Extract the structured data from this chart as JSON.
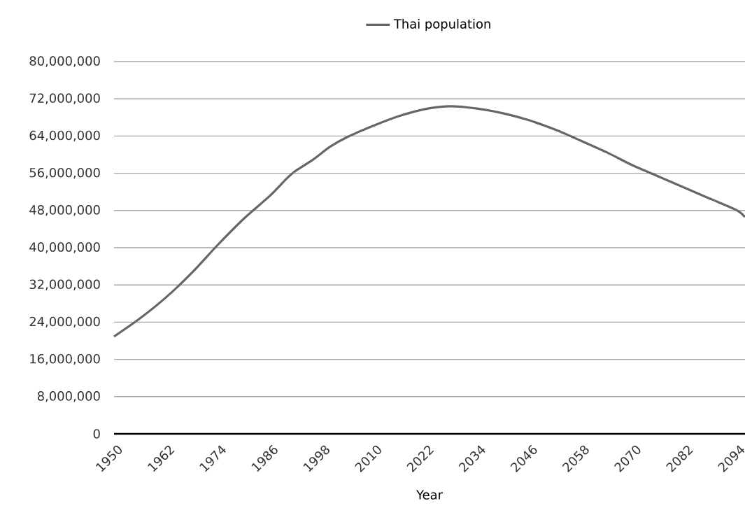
{
  "chart_data": {
    "type": "line",
    "xlabel": "Year",
    "x": [
      1950,
      1956,
      1962,
      1968,
      1974,
      1980,
      1986,
      1990,
      1992,
      1996,
      2000,
      2004,
      2010,
      2016,
      2022,
      2028,
      2034,
      2040,
      2046,
      2052,
      2058,
      2064,
      2070,
      2076,
      2082,
      2088,
      2094,
      2096
    ],
    "series": [
      {
        "name": "Thai population",
        "color": "#666666",
        "values": [
          20900000,
          24800000,
          29300000,
          34600000,
          40600000,
          46200000,
          51100000,
          54900000,
          56500000,
          58900000,
          61700000,
          63800000,
          66200000,
          68300000,
          69800000,
          70400000,
          69900000,
          68900000,
          67400000,
          65400000,
          63000000,
          60500000,
          57700000,
          55300000,
          52900000,
          50500000,
          48100000,
          46600000
        ]
      }
    ],
    "xlim": [
      1950,
      2096
    ],
    "xticks": [
      1950,
      1962,
      1974,
      1986,
      1998,
      2010,
      2022,
      2034,
      2046,
      2058,
      2070,
      2082,
      2094
    ],
    "ylim": [
      0,
      80000000
    ],
    "yticks": [
      {
        "value": 0,
        "label": "0"
      },
      {
        "value": 8000000,
        "label": "8,000,000"
      },
      {
        "value": 16000000,
        "label": "16,000,000"
      },
      {
        "value": 24000000,
        "label": "24,000,000"
      },
      {
        "value": 32000000,
        "label": "32,000,000"
      },
      {
        "value": 40000000,
        "label": "40,000,000"
      },
      {
        "value": 48000000,
        "label": "48,000,000"
      },
      {
        "value": 56000000,
        "label": "56,000,000"
      },
      {
        "value": 64000000,
        "label": "64,000,000"
      },
      {
        "value": 72000000,
        "label": "72,000,000"
      },
      {
        "value": 80000000,
        "label": "80,000,000"
      }
    ],
    "grid": "y",
    "legend": "top",
    "marker": "none",
    "line_style": "solid"
  }
}
